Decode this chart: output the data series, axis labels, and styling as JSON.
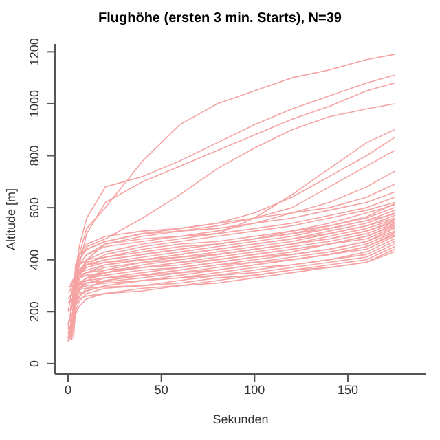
{
  "chart_data": {
    "type": "line",
    "title": "Flughöhe (ersten 3 min. Starts), N=39",
    "xlabel": "Sekunden",
    "ylabel": "Altitude [m]",
    "xlim": [
      -7,
      192
    ],
    "xticks": [
      0,
      50,
      100,
      150
    ],
    "ylim": [
      -40,
      1230
    ],
    "yticks": [
      0,
      200,
      400,
      600,
      800,
      1000,
      1200
    ],
    "grid": false,
    "marker": "none",
    "line_style": "solid",
    "series": [
      {
        "color": "#f5a3a3",
        "x": [
          3,
          4,
          6,
          10,
          20,
          40,
          60,
          80,
          100,
          120,
          140,
          160,
          175
        ],
        "values": [
          150,
          300,
          420,
          520,
          600,
          780,
          920,
          1000,
          1050,
          1100,
          1130,
          1170,
          1190
        ]
      },
      {
        "color": "#f5a3a3",
        "x": [
          0,
          4,
          6,
          10,
          20,
          40,
          60,
          80,
          100,
          120,
          140,
          160,
          175
        ],
        "values": [
          200,
          350,
          450,
          560,
          680,
          720,
          780,
          850,
          920,
          980,
          1030,
          1080,
          1110
        ]
      },
      {
        "color": "#f5a3a3",
        "x": [
          0,
          4,
          6,
          10,
          20,
          40,
          60,
          80,
          100,
          120,
          140,
          160,
          175
        ],
        "values": [
          100,
          250,
          380,
          500,
          620,
          700,
          760,
          820,
          880,
          940,
          990,
          1050,
          1080
        ]
      },
      {
        "color": "#f5a3a3",
        "x": [
          3,
          4,
          6,
          10,
          20,
          40,
          60,
          80,
          100,
          120,
          140,
          160,
          175
        ],
        "values": [
          180,
          330,
          400,
          450,
          480,
          560,
          650,
          750,
          830,
          900,
          950,
          980,
          1000
        ]
      },
      {
        "color": "#f5a3a3",
        "x": [
          1,
          4,
          6,
          10,
          20,
          40,
          60,
          80,
          100,
          120,
          140,
          160,
          175
        ],
        "values": [
          120,
          280,
          350,
          400,
          430,
          460,
          480,
          500,
          560,
          650,
          750,
          850,
          900
        ]
      },
      {
        "color": "#f5a3a3",
        "x": [
          3,
          4,
          6,
          10,
          20,
          40,
          60,
          80,
          100,
          120,
          140,
          160,
          175
        ],
        "values": [
          250,
          380,
          420,
          440,
          470,
          500,
          520,
          540,
          580,
          640,
          720,
          800,
          870
        ]
      },
      {
        "color": "#f5a3a3",
        "x": [
          1,
          4,
          6,
          10,
          20,
          40,
          60,
          80,
          100,
          120,
          140,
          160,
          175
        ],
        "values": [
          90,
          220,
          320,
          400,
          460,
          490,
          510,
          530,
          560,
          600,
          680,
          760,
          820
        ]
      },
      {
        "color": "#f5a3a3",
        "x": [
          1,
          4,
          6,
          10,
          20,
          40,
          60,
          80,
          100,
          120,
          140,
          160,
          175
        ],
        "values": [
          200,
          320,
          380,
          420,
          450,
          470,
          490,
          510,
          540,
          580,
          620,
          680,
          740
        ]
      },
      {
        "color": "#f5a3a3",
        "x": [
          1,
          4,
          6,
          10,
          20,
          40,
          60,
          80,
          100,
          120,
          140,
          160,
          175
        ],
        "values": [
          300,
          340,
          420,
          460,
          490,
          510,
          520,
          540,
          560,
          580,
          600,
          640,
          690
        ]
      },
      {
        "color": "#f5a3a3",
        "x": [
          2,
          4,
          6,
          10,
          20,
          40,
          60,
          80,
          100,
          120,
          140,
          160,
          175
        ],
        "values": [
          120,
          360,
          400,
          440,
          470,
          500,
          510,
          520,
          540,
          560,
          590,
          620,
          660
        ]
      },
      {
        "color": "#f5a3a3",
        "x": [
          1,
          4,
          6,
          10,
          20,
          40,
          60,
          80,
          100,
          120,
          140,
          160,
          175
        ],
        "values": [
          280,
          350,
          380,
          420,
          460,
          480,
          490,
          500,
          520,
          540,
          570,
          600,
          640
        ]
      },
      {
        "color": "#f5a3a3",
        "x": [
          1,
          4,
          6,
          10,
          20,
          40,
          60,
          80,
          100,
          120,
          140,
          160,
          175
        ],
        "values": [
          100,
          300,
          340,
          380,
          420,
          450,
          470,
          490,
          510,
          530,
          560,
          590,
          620
        ]
      },
      {
        "color": "#f5a3a3",
        "x": [
          2,
          4,
          6,
          10,
          20,
          40,
          60,
          80,
          100,
          120,
          140,
          160,
          175
        ],
        "values": [
          90,
          290,
          350,
          380,
          400,
          420,
          440,
          460,
          480,
          510,
          540,
          580,
          610
        ]
      },
      {
        "color": "#f5a3a3",
        "x": [
          1,
          4,
          6,
          10,
          20,
          40,
          60,
          80,
          100,
          120,
          140,
          160,
          175
        ],
        "values": [
          240,
          330,
          360,
          390,
          410,
          440,
          460,
          470,
          490,
          510,
          530,
          560,
          600
        ]
      },
      {
        "color": "#f5a3a3",
        "x": [
          0,
          4,
          6,
          10,
          20,
          40,
          60,
          80,
          100,
          120,
          140,
          160,
          175
        ],
        "values": [
          130,
          320,
          350,
          370,
          390,
          410,
          430,
          450,
          470,
          490,
          520,
          550,
          590
        ]
      },
      {
        "color": "#f5a3a3",
        "x": [
          3,
          4,
          6,
          10,
          20,
          40,
          60,
          80,
          100,
          120,
          140,
          160,
          175
        ],
        "values": [
          290,
          320,
          330,
          350,
          380,
          400,
          420,
          440,
          460,
          480,
          510,
          540,
          580
        ]
      },
      {
        "color": "#f5a3a3",
        "x": [
          3,
          4,
          6,
          10,
          20,
          40,
          60,
          80,
          100,
          120,
          140,
          160,
          175
        ],
        "values": [
          110,
          360,
          380,
          400,
          410,
          430,
          450,
          460,
          480,
          500,
          520,
          550,
          575
        ]
      },
      {
        "color": "#f5a3a3",
        "x": [
          0,
          4,
          6,
          10,
          20,
          40,
          60,
          80,
          100,
          120,
          140,
          160,
          175
        ],
        "values": [
          250,
          290,
          300,
          330,
          360,
          390,
          410,
          430,
          450,
          470,
          500,
          530,
          570
        ]
      },
      {
        "color": "#f5a3a3",
        "x": [
          2,
          4,
          6,
          10,
          20,
          40,
          60,
          80,
          100,
          120,
          140,
          160,
          175
        ],
        "values": [
          140,
          320,
          350,
          360,
          380,
          400,
          420,
          440,
          460,
          480,
          500,
          530,
          560
        ]
      },
      {
        "color": "#f5a3a3",
        "x": [
          3,
          4,
          6,
          10,
          20,
          40,
          60,
          80,
          100,
          120,
          140,
          160,
          175
        ],
        "values": [
          270,
          300,
          330,
          350,
          370,
          390,
          400,
          420,
          440,
          460,
          490,
          520,
          555
        ]
      },
      {
        "color": "#f5a3a3",
        "x": [
          0,
          4,
          6,
          10,
          20,
          40,
          60,
          80,
          100,
          120,
          140,
          160,
          175
        ],
        "values": [
          85,
          240,
          290,
          320,
          350,
          380,
          400,
          420,
          440,
          460,
          480,
          510,
          550
        ]
      },
      {
        "color": "#f5a3a3",
        "x": [
          3,
          4,
          6,
          10,
          20,
          40,
          60,
          80,
          100,
          120,
          140,
          160,
          175
        ],
        "values": [
          230,
          340,
          360,
          380,
          390,
          400,
          410,
          420,
          440,
          460,
          480,
          510,
          545
        ]
      },
      {
        "color": "#f5a3a3",
        "x": [
          0,
          4,
          6,
          10,
          20,
          40,
          60,
          80,
          100,
          120,
          140,
          160,
          175
        ],
        "values": [
          150,
          280,
          310,
          330,
          350,
          370,
          390,
          410,
          430,
          450,
          470,
          500,
          540
        ]
      },
      {
        "color": "#f5a3a3",
        "x": [
          2,
          4,
          6,
          10,
          20,
          40,
          60,
          80,
          100,
          120,
          140,
          160,
          175
        ],
        "values": [
          310,
          320,
          330,
          340,
          350,
          370,
          380,
          400,
          420,
          440,
          460,
          490,
          535
        ]
      },
      {
        "color": "#f5a3a3",
        "x": [
          3,
          4,
          6,
          10,
          20,
          40,
          60,
          80,
          100,
          120,
          140,
          160,
          175
        ],
        "values": [
          95,
          230,
          280,
          310,
          330,
          350,
          370,
          390,
          410,
          430,
          460,
          490,
          530
        ]
      },
      {
        "color": "#f5a3a3",
        "x": [
          2,
          4,
          6,
          10,
          20,
          40,
          60,
          80,
          100,
          120,
          140,
          160,
          175
        ],
        "values": [
          220,
          320,
          340,
          350,
          360,
          370,
          390,
          400,
          420,
          440,
          460,
          480,
          525
        ]
      },
      {
        "color": "#f5a3a3",
        "x": [
          1,
          4,
          6,
          10,
          20,
          40,
          60,
          80,
          100,
          120,
          140,
          160,
          175
        ],
        "values": [
          160,
          230,
          260,
          290,
          320,
          340,
          360,
          380,
          400,
          420,
          440,
          470,
          520
        ]
      },
      {
        "color": "#f5a3a3",
        "x": [
          2,
          4,
          6,
          10,
          20,
          40,
          60,
          80,
          100,
          120,
          140,
          160,
          175
        ],
        "values": [
          285,
          300,
          310,
          330,
          340,
          360,
          370,
          390,
          410,
          420,
          440,
          470,
          510
        ]
      },
      {
        "color": "#f5a3a3",
        "x": [
          2,
          4,
          6,
          10,
          20,
          40,
          60,
          80,
          100,
          120,
          140,
          160,
          175
        ],
        "values": [
          105,
          250,
          290,
          310,
          320,
          340,
          360,
          380,
          390,
          410,
          430,
          460,
          505
        ]
      },
      {
        "color": "#f5a3a3",
        "x": [
          2,
          4,
          6,
          10,
          20,
          40,
          60,
          80,
          100,
          120,
          140,
          160,
          175
        ],
        "values": [
          245,
          260,
          270,
          280,
          300,
          320,
          340,
          360,
          380,
          400,
          420,
          450,
          500
        ]
      },
      {
        "color": "#f5a3a3",
        "x": [
          2,
          4,
          6,
          10,
          20,
          40,
          60,
          80,
          100,
          120,
          140,
          160,
          175
        ],
        "values": [
          170,
          290,
          310,
          320,
          330,
          340,
          350,
          370,
          390,
          400,
          420,
          450,
          495
        ]
      },
      {
        "color": "#f5a3a3",
        "x": [
          0,
          4,
          6,
          10,
          20,
          40,
          60,
          80,
          100,
          120,
          140,
          160,
          175
        ],
        "values": [
          295,
          300,
          305,
          310,
          315,
          330,
          350,
          360,
          380,
          400,
          420,
          440,
          490
        ]
      },
      {
        "color": "#f5a3a3",
        "x": [
          0,
          4,
          6,
          10,
          20,
          40,
          60,
          80,
          100,
          120,
          140,
          160,
          175
        ],
        "values": [
          115,
          220,
          260,
          280,
          300,
          320,
          330,
          350,
          370,
          380,
          400,
          430,
          480
        ]
      },
      {
        "color": "#f5a3a3",
        "x": [
          1,
          4,
          6,
          10,
          20,
          40,
          60,
          80,
          100,
          120,
          140,
          160,
          175
        ],
        "values": [
          255,
          275,
          290,
          300,
          310,
          320,
          330,
          340,
          360,
          380,
          400,
          420,
          470
        ]
      },
      {
        "color": "#f5a3a3",
        "x": [
          1,
          4,
          6,
          10,
          20,
          40,
          60,
          80,
          100,
          120,
          140,
          160,
          175
        ],
        "values": [
          135,
          200,
          240,
          270,
          290,
          300,
          320,
          340,
          350,
          370,
          390,
          410,
          460
        ]
      },
      {
        "color": "#f5a3a3",
        "x": [
          0,
          4,
          6,
          10,
          20,
          40,
          60,
          80,
          100,
          120,
          140,
          160,
          175
        ],
        "values": [
          275,
          280,
          285,
          290,
          295,
          300,
          310,
          330,
          340,
          360,
          380,
          400,
          450
        ]
      },
      {
        "color": "#f5a3a3",
        "x": [
          3,
          4,
          6,
          10,
          20,
          40,
          60,
          80,
          100,
          120,
          140,
          160,
          175
        ],
        "values": [
          125,
          190,
          220,
          250,
          270,
          290,
          300,
          320,
          340,
          360,
          370,
          390,
          440
        ]
      },
      {
        "color": "#f5a3a3",
        "x": [
          0,
          4,
          6,
          10,
          20,
          40,
          60,
          80,
          100,
          120,
          140,
          160,
          175
        ],
        "values": [
          235,
          245,
          250,
          260,
          270,
          280,
          300,
          310,
          330,
          350,
          370,
          390,
          430
        ]
      },
      {
        "color": "#f5a3a3",
        "x": [
          2,
          4,
          6,
          10,
          20,
          40,
          60,
          80,
          100,
          120,
          140,
          160,
          175
        ],
        "values": [
          260,
          330,
          360,
          380,
          400,
          420,
          440,
          460,
          480,
          500,
          530,
          565,
          615
        ]
      }
    ]
  }
}
